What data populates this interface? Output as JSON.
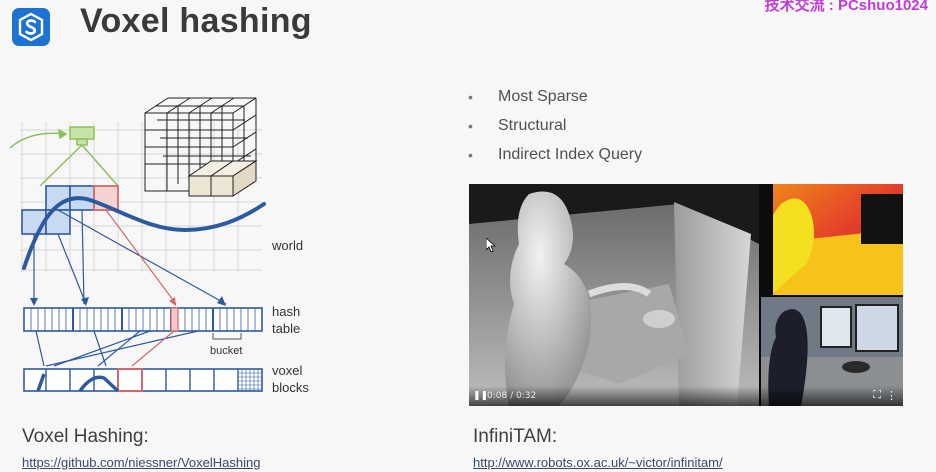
{
  "slide": {
    "title": "Voxel hashing",
    "watermark": "技术交流 : PCshuo1024"
  },
  "diagram": {
    "label_world": "world",
    "label_hash": "hash",
    "label_table": "table",
    "label_bucket": "bucket",
    "label_voxel": "voxel",
    "label_blocks": "blocks"
  },
  "bullets": [
    "Most Sparse",
    "Structural",
    "Indirect Index Query"
  ],
  "video": {
    "time": "0:08 / 0:32",
    "play_icon": "pause-icon",
    "fullscreen_icon": "fullscreen-icon",
    "more_icon": "more-options-icon"
  },
  "left_caption": {
    "title": "Voxel Hashing:",
    "link": "https://github.com/niessner/VoxelHashing"
  },
  "right_caption": {
    "title": "InfiniTAM:",
    "link": "http://www.robots.ox.ac.uk/~victor/infinitam/"
  },
  "colors": {
    "accent_blue": "#2d5a9e",
    "cell_fill": "#c8d9f2",
    "highlight_red": "#d06a6a",
    "camera_green": "#8fbf5a",
    "logo_blue": "#1e73d2"
  }
}
